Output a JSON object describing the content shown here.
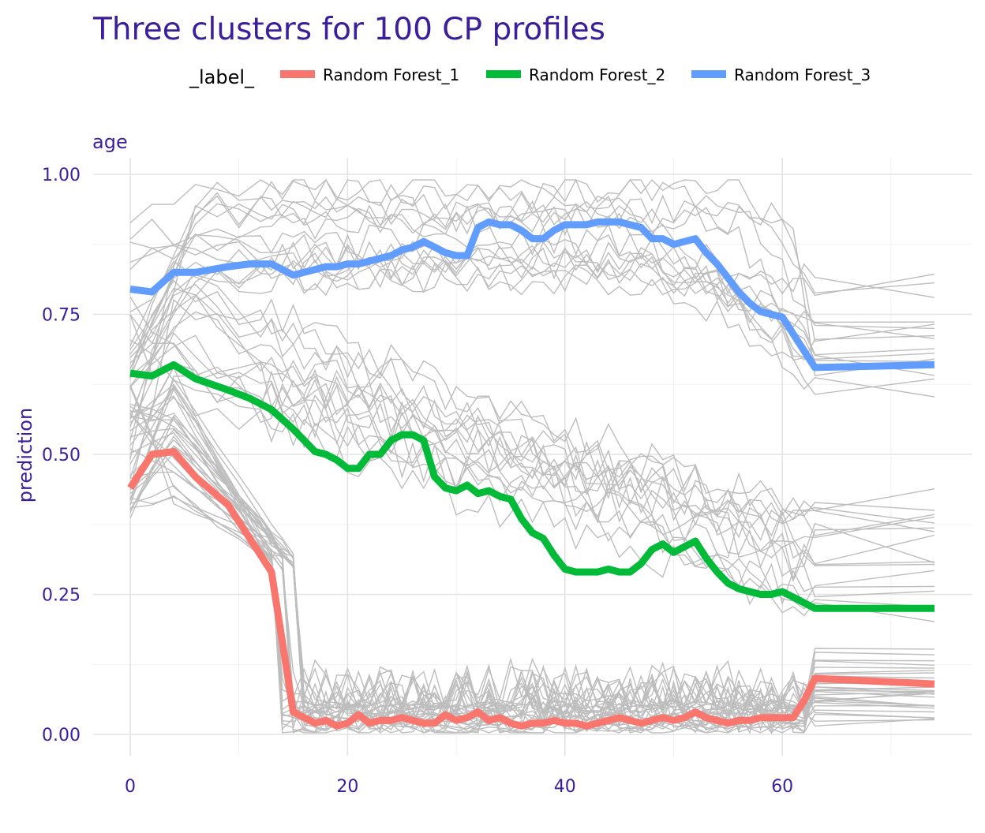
{
  "chart_data": {
    "type": "line",
    "title": "Three clusters for 100 CP profiles",
    "panel_label": "age",
    "xlabel": "",
    "ylabel": "prediction",
    "xlim": [
      0,
      74
    ],
    "ylim": [
      0,
      1
    ],
    "x_ticks": [
      0,
      20,
      40,
      60
    ],
    "x_tick_labels": [
      "0",
      "20",
      "40",
      "60"
    ],
    "y_ticks": [
      0,
      0.25,
      0.5,
      0.75,
      1
    ],
    "y_tick_labels": [
      "0.00",
      "0.25",
      "0.50",
      "0.75",
      "1.00"
    ],
    "grid": true,
    "legend_position": "top",
    "legend_title": "_label_",
    "colors": {
      "title": "#3b1e9c",
      "background_profiles": "#bdbdbd",
      "Random Forest_1": "#f8766d",
      "Random Forest_2": "#00ba38",
      "Random Forest_3": "#619cff"
    },
    "series": [
      {
        "name": "Random Forest_1",
        "color": "#f8766d",
        "x": [
          0,
          2,
          4,
          6,
          9,
          11,
          13,
          15,
          16,
          17,
          18,
          19,
          20,
          21,
          22,
          23,
          24,
          25,
          26,
          27,
          28,
          29,
          30,
          31,
          32,
          33,
          34,
          35,
          36,
          37,
          38,
          39,
          40,
          41,
          42,
          43,
          44,
          45,
          46,
          47,
          48,
          49,
          50,
          51,
          52,
          53,
          54,
          55,
          56,
          57,
          58,
          59,
          60,
          61,
          62,
          63,
          74
        ],
        "y": [
          0.44,
          0.5,
          0.505,
          0.46,
          0.41,
          0.35,
          0.29,
          0.04,
          0.03,
          0.02,
          0.025,
          0.015,
          0.02,
          0.035,
          0.02,
          0.025,
          0.025,
          0.03,
          0.025,
          0.02,
          0.02,
          0.035,
          0.025,
          0.03,
          0.04,
          0.025,
          0.03,
          0.02,
          0.015,
          0.02,
          0.02,
          0.025,
          0.02,
          0.02,
          0.015,
          0.02,
          0.025,
          0.03,
          0.025,
          0.02,
          0.025,
          0.03,
          0.025,
          0.03,
          0.04,
          0.03,
          0.025,
          0.02,
          0.025,
          0.025,
          0.03,
          0.03,
          0.03,
          0.03,
          0.06,
          0.1,
          0.09
        ]
      },
      {
        "name": "Random Forest_2",
        "color": "#00ba38",
        "x": [
          0,
          2,
          4,
          6,
          9,
          11,
          13,
          15,
          17,
          18,
          19,
          20,
          21,
          22,
          23,
          24,
          25,
          26,
          27,
          28,
          29,
          30,
          31,
          32,
          33,
          34,
          35,
          36,
          37,
          38,
          39,
          40,
          41,
          42,
          43,
          44,
          45,
          46,
          47,
          48,
          49,
          50,
          51,
          52,
          53,
          54,
          55,
          56,
          57,
          58,
          59,
          60,
          61,
          62,
          63,
          74
        ],
        "y": [
          0.645,
          0.64,
          0.66,
          0.635,
          0.615,
          0.6,
          0.58,
          0.545,
          0.505,
          0.5,
          0.49,
          0.475,
          0.475,
          0.5,
          0.5,
          0.525,
          0.535,
          0.535,
          0.525,
          0.46,
          0.44,
          0.435,
          0.445,
          0.43,
          0.435,
          0.425,
          0.42,
          0.385,
          0.36,
          0.35,
          0.32,
          0.295,
          0.29,
          0.29,
          0.29,
          0.295,
          0.29,
          0.29,
          0.305,
          0.33,
          0.34,
          0.325,
          0.335,
          0.345,
          0.315,
          0.29,
          0.27,
          0.26,
          0.255,
          0.25,
          0.25,
          0.255,
          0.245,
          0.235,
          0.225,
          0.225
        ]
      },
      {
        "name": "Random Forest_3",
        "color": "#619cff",
        "x": [
          0,
          2,
          4,
          6,
          9,
          11,
          13,
          15,
          17,
          18,
          19,
          20,
          21,
          22,
          23,
          24,
          25,
          26,
          27,
          28,
          29,
          30,
          31,
          32,
          33,
          34,
          35,
          36,
          37,
          38,
          39,
          40,
          41,
          42,
          43,
          44,
          45,
          46,
          47,
          48,
          49,
          50,
          51,
          52,
          53,
          54,
          55,
          56,
          57,
          58,
          59,
          60,
          61,
          62,
          63,
          74
        ],
        "y": [
          0.795,
          0.79,
          0.825,
          0.825,
          0.835,
          0.84,
          0.84,
          0.82,
          0.83,
          0.835,
          0.835,
          0.84,
          0.84,
          0.845,
          0.85,
          0.855,
          0.865,
          0.87,
          0.88,
          0.87,
          0.86,
          0.855,
          0.855,
          0.905,
          0.915,
          0.91,
          0.91,
          0.9,
          0.885,
          0.885,
          0.9,
          0.91,
          0.91,
          0.91,
          0.915,
          0.915,
          0.915,
          0.91,
          0.905,
          0.885,
          0.885,
          0.875,
          0.88,
          0.885,
          0.86,
          0.84,
          0.815,
          0.79,
          0.77,
          0.755,
          0.75,
          0.745,
          0.715,
          0.685,
          0.655,
          0.66
        ]
      }
    ]
  }
}
